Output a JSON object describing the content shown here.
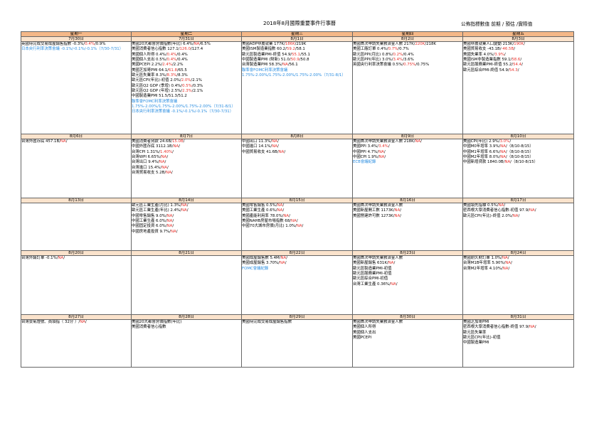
{
  "header": {
    "title": "2018年8月國際重要事件行事曆",
    "legend": "公佈指標數值 前期 / 預估 /實際值"
  },
  "colors": {
    "header_bg": "#f5b888",
    "date_bg": "#fbe3cc",
    "forecast": "#e8302a",
    "event": "#2a8de0"
  },
  "weekdays": [
    "星期一",
    "星期二",
    "星期三",
    "星期四",
    "星期五"
  ],
  "weeks": [
    {
      "dates": [
        "7月30日",
        "7月31日",
        "8月1日",
        "8月2日",
        "8月3日"
      ],
      "days": [
        [
          {
            "t": "英國待完成交易成屋銷售指數 -0.3%/",
            "r": "0.4%",
            "s": "/0.9%"
          },
          {
            "t": "日本央行利率決策會議 -0.1%/-0.1%/-0.1%（7/30-7/31）",
            "c": "blue",
            "wrap": true
          }
        ],
        [
          {
            "t": "美國20大都會房價指數(年比) 6.4%/",
            "r": "NA",
            "s": "/6.5%"
          },
          {
            "t": "美國消費者信心指數 127.1/",
            "r": "126.0",
            "s": "/127.4"
          },
          {
            "t": "美國個人所得 0.4%/",
            "r": "0.4%",
            "s": "/0.4%"
          },
          {
            "t": "美國個人支出 0.5%/",
            "r": "0.4%",
            "s": "/0.4%"
          },
          {
            "t": "美國PCEPI 2.2%/",
            "r": "2.4%",
            "s": "/2.2%"
          },
          {
            "t": "美國芝加哥PMI 64.1/",
            "r": "61.8",
            "s": "/65.5"
          },
          {
            "t": "歐元區失業率 8.3%/",
            "r": "8.3%",
            "s": "/8.3%"
          },
          {
            "t": "歐元區CPI(年比)-初值 2.0%/",
            "r": "2.0%",
            "s": "/2.1%"
          },
          {
            "t": "歐元區Q2 GDP (季增) 0.4%/",
            "r": "0.5%",
            "s": "/0.3%"
          },
          {
            "t": "歐元區Q2 GDP (年增) 2.5%/",
            "r": "2.3%",
            "s": "/2.1%"
          },
          {
            "t": "中國製造業PMI 51.5/51.3/51.2"
          },
          {
            "t": "聯準會FOMC利率決策會議 1.75%-2.00%/1.75%-2.00%/1.75%-2.00%（7/31-8/1）",
            "c": "blue",
            "wrap": true
          },
          {
            "t": "日本央行利率決策會議 -0.1%/-0.1%/-0.1%（7/30-7/31）",
            "c": "blue",
            "wrap": true
          }
        ],
        [
          {
            "t": "美國ADP非農就業 177K/",
            "r": "186K",
            "s": "/219K"
          },
          {
            "t": "美國ISM製造業指數 60.2/",
            "r": "59.2",
            "s": "/58.1"
          },
          {
            "t": "歐元區製造業PMI-終值 54.9/",
            "r": "55.1",
            "s": "/55.1"
          },
          {
            "t": "中國製造業PMI (財新) 51.0/",
            "r": "50.9",
            "s": "/50.8"
          },
          {
            "t": "台灣製造業PMI 58.3%/",
            "r": "NA",
            "s": "/56.1"
          },
          {
            "t": "聯準會FOMC利率決策會議 1.75%-2.00%/1.75%-2.00%/1.75%-2.00%（7/31-8/1）",
            "c": "blue",
            "wrap": true
          }
        ],
        [
          {
            "t": "美國首次申請失業救濟金人數 217K/",
            "r": "220K",
            "s": "/218K"
          },
          {
            "t": "美國工廠訂單 0.4%/",
            "r": "0.7%",
            "s": "/0.7%"
          },
          {
            "t": "歐元區PPI(月比) 0.8%/",
            "r": "0.2%",
            "s": "/0.4%"
          },
          {
            "t": "歐元區PPI(年比) 3.0%/",
            "r": "3.4%",
            "s": "/3.6%"
          },
          {
            "t": "英國央行利率決策會議 0.5%/",
            "r": "0.75%",
            "s": "/0.75%"
          }
        ],
        [
          {
            "t": "美國非農就業人口變動 213K/",
            "r": "190K",
            "s": "/"
          },
          {
            "t": "美國貿易收支 -43.1B/",
            "r": "-46.5B",
            "s": "/"
          },
          {
            "t": "美國失業率 4.0%/",
            "r": "3.9%",
            "s": "/"
          },
          {
            "t": "美國ISM非製造業指數 59.1/",
            "r": "58.6",
            "s": "/"
          },
          {
            "t": "歐元區服務業PMI-終值 55.2/",
            "r": "54.4",
            "s": "/"
          },
          {
            "t": "歐元區綜合PMI-終值 54.9/",
            "r": "54.3",
            "s": "/"
          }
        ]
      ]
    },
    {
      "dates": [
        "8月6日",
        "8月7日",
        "8月8日",
        "8月9日",
        "8月10日"
      ],
      "days": [
        [
          {
            "t": "台灣外匯存底 457.1B/",
            "r": "NA",
            "s": "/"
          }
        ],
        [
          {
            "t": "美國消費者貸款 24.6B/",
            "r": "15.0B",
            "s": "/"
          },
          {
            "t": "中國外匯存底 3112.1B/",
            "r": "NA",
            "s": "/"
          },
          {
            "t": "台灣CPI 1.31%/",
            "r": "1.40%",
            "s": "/"
          },
          {
            "t": "台灣WPI 6.65%/",
            "r": "NA",
            "s": "/"
          },
          {
            "t": "台灣出口 9.4%/",
            "r": "NA",
            "s": "/"
          },
          {
            "t": "台灣進口 15.4%/",
            "r": "NA",
            "s": "/"
          },
          {
            "t": "台灣貿易收支 5.2B/",
            "r": "NA",
            "s": "/"
          }
        ],
        [
          {
            "t": "中國出口 11.3%/",
            "r": "NA",
            "s": "/"
          },
          {
            "t": "中國進口 14.1%/",
            "r": "NA",
            "s": "/"
          },
          {
            "t": "中國貿易收支 41.6B/",
            "r": "NA",
            "s": "/"
          }
        ],
        [
          {
            "t": "美國首次申請失業救濟金人數 218K/",
            "r": "NA",
            "s": "/"
          },
          {
            "t": "美國PPI 3.4%/",
            "r": "3.4%",
            "s": "/"
          },
          {
            "t": "中國PPI 4.7%/",
            "r": "NA",
            "s": "/"
          },
          {
            "t": "中國CPI 1.9%/",
            "r": "NA",
            "s": "/"
          },
          {
            "t": "ECB會議紀錄",
            "c": "blue"
          }
        ],
        [
          {
            "t": "美國CPI(年比) 2.9%/",
            "r": "3.0%",
            "s": "/"
          },
          {
            "t": "中國M0年增率 3.9%/",
            "r": "NA",
            "s": "/（8/10-8/15）"
          },
          {
            "t": "中國M1年增率 6.6%/",
            "r": "NA",
            "s": "/（8/10-8/15）"
          },
          {
            "t": "中國M2年增率 8.0%/",
            "r": "NA",
            "s": "/（8/10-8/15）"
          },
          {
            "t": "中國新增貸款 1840.0B/",
            "r": "NA",
            "s": "/（8/10-8/15）"
          }
        ]
      ]
    },
    {
      "dates": [
        "8月13日",
        "8月14日",
        "8月15日",
        "8月16日",
        "8月17日"
      ],
      "days": [
        [],
        [
          {
            "t": "歐元區工業生產(月比) 1.3%/",
            "r": "NA",
            "s": "/"
          },
          {
            "t": "歐元區工業生產(年比) 2.4%/",
            "r": "NA",
            "s": "/"
          },
          {
            "t": "中國零售銷售 9.0%/",
            "r": "NA",
            "s": "/"
          },
          {
            "t": "中國工業生產 6.0%/",
            "r": "NA",
            "s": "/"
          },
          {
            "t": "中國固定投資 6.0%/",
            "r": "NA",
            "s": "/"
          },
          {
            "t": "中國房地產投資 9.7%/",
            "r": "NA",
            "s": "/"
          }
        ],
        [
          {
            "t": "美國零售銷售 0.5%/",
            "r": "NA",
            "s": "/"
          },
          {
            "t": "美國工業生產 0.6%/",
            "r": "NA",
            "s": "/"
          },
          {
            "t": "美國產能利用率 78.0%/",
            "r": "NA",
            "s": "/"
          },
          {
            "t": "美國NAHB房屋市場指數 68/",
            "r": "NA",
            "s": "/"
          },
          {
            "t": "中國70大城市房價(月比) 1.0%/",
            "r": "NA",
            "s": "/"
          }
        ],
        [
          {
            "t": "美國首次申請失業救濟金人數"
          },
          {
            "t": "美國新屋開工數 1173K/",
            "r": "NA",
            "s": "/"
          },
          {
            "t": "美國營建許可數 1273K/",
            "r": "NA",
            "s": "/"
          }
        ],
        [
          {
            "t": "美國領先指標 0.5%/",
            "r": "NA",
            "s": "/"
          },
          {
            "t": "密西根大學消費者信心指數-初值 97.9/",
            "r": "NA",
            "s": "/"
          },
          {
            "t": "歐元區CPI(年比)-終值 2.0%/",
            "r": "NA",
            "s": "/"
          }
        ]
      ]
    },
    {
      "dates": [
        "8月20日",
        "8月21日",
        "8月22日",
        "8月23日",
        "8月24日"
      ],
      "days": [
        [
          {
            "t": "台灣外銷訂單 -0.1%/",
            "r": "NA",
            "s": "/"
          }
        ],
        [],
        [
          {
            "t": "美國成屋銷售數 5.4M/",
            "r": "NA",
            "s": "/"
          },
          {
            "t": "美國成屋銷售 3.70%/",
            "r": "NA",
            "s": "/"
          },
          {
            "t": "FOMC會議紀錄",
            "c": "blue"
          }
        ],
        [
          {
            "t": "美國首次申請失業救濟金人數"
          },
          {
            "t": "美國新屋銷售 631K/",
            "r": "NA",
            "s": "/"
          },
          {
            "t": "歐元區製造業PMI-初值"
          },
          {
            "t": "歐元區服務業PMI-初值"
          },
          {
            "t": "歐元區綜合PMI-初值"
          },
          {
            "t": "台灣工業生產 0.36%/",
            "r": "NA",
            "s": "/"
          }
        ],
        [
          {
            "t": "美國耐久財訂單 1.0%/",
            "r": "NA",
            "s": "/"
          },
          {
            "t": "台灣M1B年增率 5.90%/",
            "r": "NA",
            "s": "/"
          },
          {
            "t": "台灣M2年增率 4.10%/",
            "r": "NA",
            "s": "/"
          }
        ]
      ]
    },
    {
      "dates": [
        "8月27日",
        "8月28日",
        "8月29日",
        "8月30日",
        "8月31日"
      ],
      "days": [
        [
          {
            "t": "台灣景氣燈號、員領指（ 32分 ）/",
            "r": "NA",
            "s": "/"
          }
        ],
        [
          {
            "t": "美國20大都會房價指數(年比)"
          },
          {
            "t": "美國消費者信心指數"
          }
        ],
        [
          {
            "t": "美國待完成交易成屋銷售指數"
          }
        ],
        [
          {
            "t": "美國首次申請失業救濟金人數"
          },
          {
            "t": "美國個人所得"
          },
          {
            "t": "美國個人支出"
          },
          {
            "t": "美國PCEPI"
          }
        ],
        [
          {
            "t": "美國芝加哥PMI"
          },
          {
            "t": "密西根大學消費者信心指數-終值 97.9/",
            "r": "NA",
            "s": "/"
          },
          {
            "t": "歐元區失業率"
          },
          {
            "t": "歐元區CPI(年比)-初值"
          },
          {
            "t": "中國製造業PMI"
          }
        ]
      ]
    }
  ]
}
